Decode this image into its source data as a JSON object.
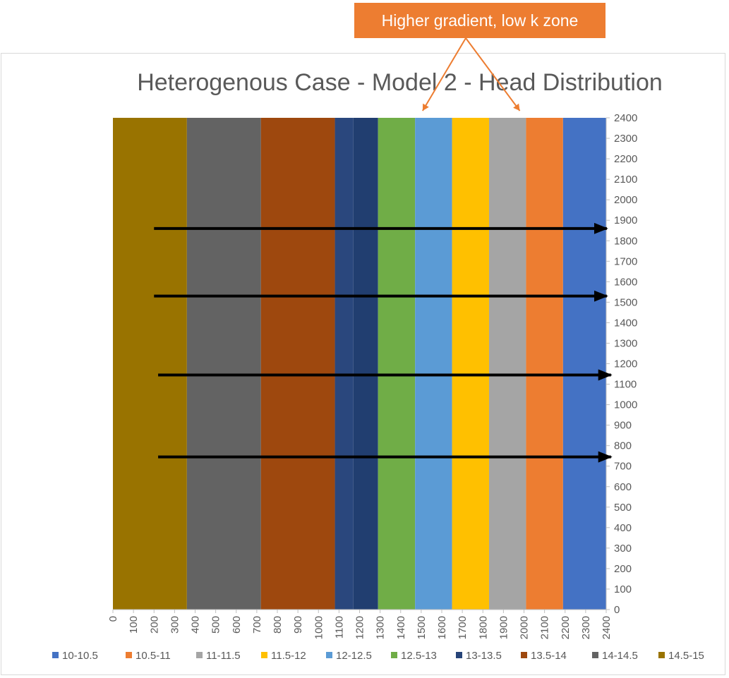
{
  "chart_data": {
    "type": "heatmap",
    "title": "Heterogenous Case - Model 2 - Head Distribution",
    "x_ticks": [
      0,
      100,
      200,
      300,
      400,
      500,
      600,
      700,
      800,
      900,
      1000,
      1100,
      1200,
      1300,
      1400,
      1500,
      1600,
      1700,
      1800,
      1900,
      2000,
      2100,
      2200,
      2300,
      2400
    ],
    "y_ticks": [
      0,
      100,
      200,
      300,
      400,
      500,
      600,
      700,
      800,
      900,
      1000,
      1100,
      1200,
      1300,
      1400,
      1500,
      1600,
      1700,
      1800,
      1900,
      2000,
      2100,
      2200,
      2400
    ],
    "y_ticks_full": [
      0,
      100,
      200,
      300,
      400,
      500,
      600,
      700,
      800,
      900,
      1000,
      1100,
      1200,
      1300,
      1400,
      1500,
      1600,
      1700,
      1800,
      1900,
      2000,
      2100,
      2200,
      2300,
      2400
    ],
    "xlim": [
      0,
      2400
    ],
    "ylim": [
      0,
      2400
    ],
    "y_axis_side": "right",
    "bands": [
      {
        "x0": 0,
        "x1": 360,
        "range": "14.5-15"
      },
      {
        "x0": 360,
        "x1": 720,
        "range": "14-14.5"
      },
      {
        "x0": 720,
        "x1": 1080,
        "range": "13.5-14"
      },
      {
        "x0": 1080,
        "x1": 1170,
        "range": "13-13.5",
        "shade": "a"
      },
      {
        "x0": 1170,
        "x1": 1290,
        "range": "13-13.5",
        "shade": "b"
      },
      {
        "x0": 1290,
        "x1": 1470,
        "range": "12.5-13"
      },
      {
        "x0": 1470,
        "x1": 1650,
        "range": "12-12.5"
      },
      {
        "x0": 1650,
        "x1": 1830,
        "range": "11.5-12"
      },
      {
        "x0": 1830,
        "x1": 2010,
        "range": "11-11.5"
      },
      {
        "x0": 2010,
        "x1": 2190,
        "range": "10.5-11"
      },
      {
        "x0": 2190,
        "x1": 2400,
        "range": "10-10.5"
      }
    ],
    "legend": [
      {
        "label": "10-10.5",
        "color": "#4472c4"
      },
      {
        "label": "10.5-11",
        "color": "#ed7d31"
      },
      {
        "label": "11-11.5",
        "color": "#a5a5a5"
      },
      {
        "label": "11.5-12",
        "color": "#ffc000"
      },
      {
        "label": "12-12.5",
        "color": "#5b9bd5"
      },
      {
        "label": "12.5-13",
        "color": "#70ad47"
      },
      {
        "label": "13-13.5",
        "color": "#264478"
      },
      {
        "label": "13.5-14",
        "color": "#9e480e"
      },
      {
        "label": "14-14.5",
        "color": "#636363"
      },
      {
        "label": "14.5-15",
        "color": "#997300"
      }
    ],
    "legend_position": "bottom",
    "flow_arrows": [
      {
        "y": 1860,
        "x_start": 200,
        "x_end": 2300
      },
      {
        "y": 1530,
        "x_start": 200,
        "x_end": 2300
      },
      {
        "y": 1145,
        "x_start": 220,
        "x_end": 2320
      },
      {
        "y": 745,
        "x_start": 220,
        "x_end": 2320
      }
    ],
    "annotation": {
      "text": "Higher gradient, low k zone",
      "color": "#ed7d31",
      "points_to_x": [
        1500,
        2000
      ]
    }
  }
}
